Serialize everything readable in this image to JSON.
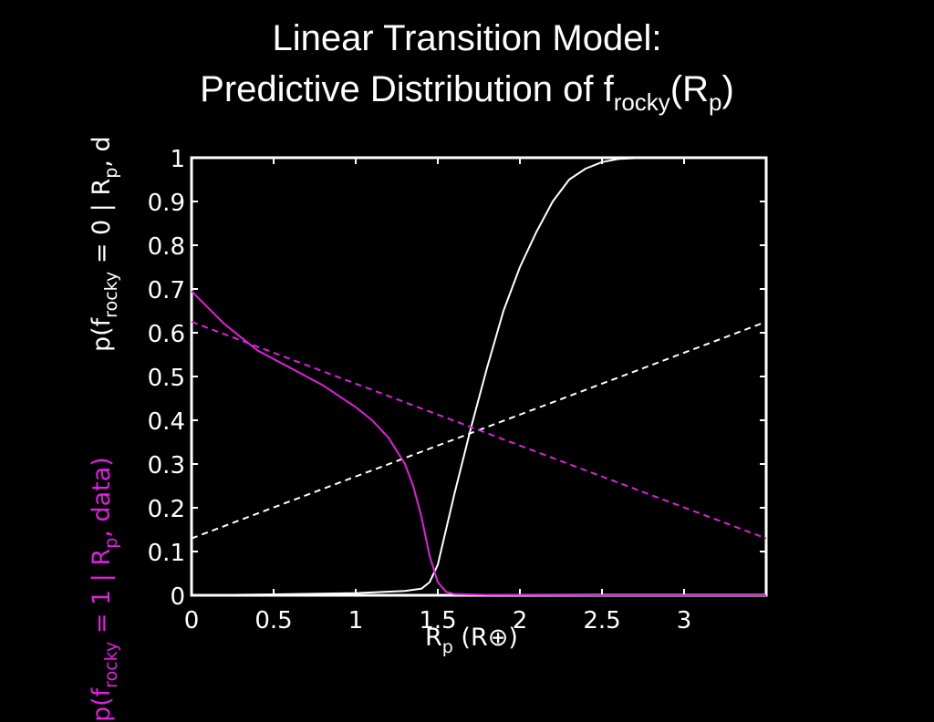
{
  "title_line1": "Linear Transition Model:",
  "title_line2_prefix": "Predictive Distribution of f",
  "title_line2_sub1": "rocky",
  "title_line2_mid": "(R",
  "title_line2_sub2": "p",
  "title_line2_suffix": ")",
  "ylabel_white": {
    "prefix": "p(f",
    "sub1": "rocky",
    "mid": " = 0 | R",
    "sub2": "p",
    "suffix": ", d"
  },
  "ylabel_magenta": {
    "prefix": "p(f",
    "sub1": "rocky",
    "mid": " = 1 | R",
    "sub2": "p",
    "suffix": ", data)"
  },
  "xlabel": {
    "prefix": "R",
    "sub": "p",
    "suffix": " (R",
    "symbol": "⊕",
    "close": ")"
  },
  "colors": {
    "background": "#000000",
    "white_series": "#ffffff",
    "magenta_series": "#e020e0"
  },
  "chart_data": {
    "type": "line",
    "xlim": [
      0,
      3.5
    ],
    "ylim": [
      0,
      1
    ],
    "xticks": [
      0,
      0.5,
      1,
      1.5,
      2,
      2.5,
      3
    ],
    "xtick_labels": [
      "0",
      "0.5",
      "1",
      "1.5",
      "2",
      "2.5",
      "3"
    ],
    "yticks": [
      0,
      0.1,
      0.2,
      0.3,
      0.4,
      0.5,
      0.6,
      0.7,
      0.8,
      0.9,
      1
    ],
    "ytick_labels": [
      "0",
      "0.1",
      "0.2",
      "0.3",
      "0.4",
      "0.5",
      "0.6",
      "0.7",
      "0.8",
      "0.9",
      "1"
    ],
    "grid": false,
    "series": [
      {
        "color": "white",
        "style": "solid",
        "x": [
          0,
          0.5,
          1.0,
          1.3,
          1.4,
          1.45,
          1.5,
          1.55,
          1.6,
          1.7,
          1.8,
          1.9,
          2.0,
          2.1,
          2.2,
          2.3,
          2.4,
          2.5,
          2.6,
          2.7,
          2.8,
          3.0,
          3.5
        ],
        "y": [
          0.0,
          0.002,
          0.005,
          0.01,
          0.015,
          0.03,
          0.07,
          0.15,
          0.23,
          0.38,
          0.52,
          0.65,
          0.75,
          0.83,
          0.9,
          0.95,
          0.975,
          0.99,
          0.997,
          0.999,
          1.0,
          1.0,
          1.0
        ]
      },
      {
        "color": "white",
        "style": "dashed",
        "x": [
          0,
          3.5
        ],
        "y": [
          0.13,
          0.625
        ]
      },
      {
        "color": "magenta",
        "style": "solid",
        "x": [
          0,
          0.2,
          0.4,
          0.6,
          0.8,
          1.0,
          1.1,
          1.2,
          1.3,
          1.35,
          1.4,
          1.45,
          1.5,
          1.55,
          1.6,
          1.8,
          2.5,
          3.5
        ],
        "y": [
          0.695,
          0.62,
          0.56,
          0.52,
          0.48,
          0.43,
          0.4,
          0.36,
          0.3,
          0.25,
          0.18,
          0.09,
          0.03,
          0.008,
          0.003,
          0.001,
          0.0,
          0.0
        ]
      },
      {
        "color": "magenta",
        "style": "dashed",
        "x": [
          0,
          3.5
        ],
        "y": [
          0.625,
          0.13
        ]
      }
    ]
  }
}
